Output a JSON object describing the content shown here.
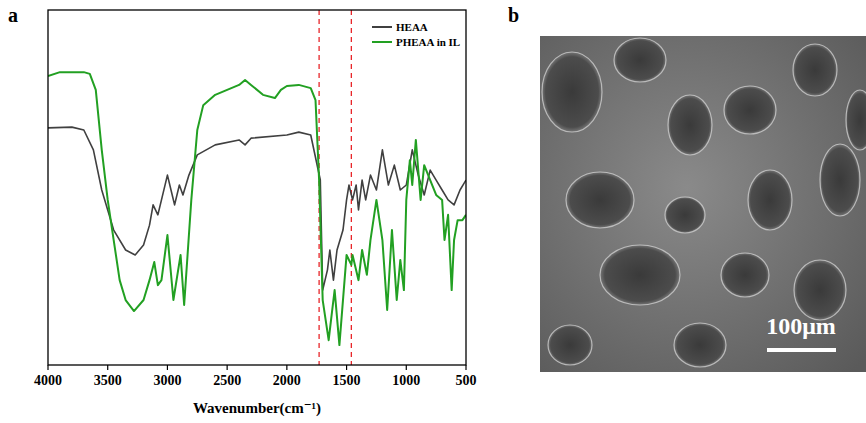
{
  "chart_data": {
    "type": "line",
    "panel_label": "a",
    "x_label": "Wavenumber(cm⁻¹)",
    "xlim": [
      4000,
      500
    ],
    "xticks": [
      4000,
      3500,
      3000,
      2500,
      2000,
      1500,
      1000,
      500
    ],
    "ylim": [
      0,
      100
    ],
    "yticks": [],
    "tick_labels": "x",
    "grid": false,
    "legend": "upper right",
    "reference_lines": {
      "x": [
        1730,
        1460
      ],
      "color": "#e8262a",
      "line_style": "dashed"
    },
    "series": [
      {
        "name": "HEAA",
        "color": "#404040",
        "x": [
          4000,
          3800,
          3700,
          3620,
          3550,
          3450,
          3350,
          3270,
          3200,
          3150,
          3120,
          3080,
          3000,
          2960,
          2940,
          2900,
          2870,
          2820,
          2750,
          2600,
          2400,
          2350,
          2300,
          2000,
          1900,
          1800,
          1720,
          1700,
          1660,
          1640,
          1610,
          1580,
          1530,
          1500,
          1480,
          1450,
          1420,
          1400,
          1370,
          1340,
          1300,
          1250,
          1200,
          1150,
          1100,
          1050,
          1000,
          950,
          900,
          850,
          800,
          750,
          700,
          650,
          600,
          550,
          500
        ],
        "values": [
          66.8,
          67.0,
          66.2,
          60.6,
          49.3,
          38.0,
          32.4,
          31.0,
          33.8,
          39.4,
          45.1,
          42.3,
          53.5,
          47.9,
          45.1,
          50.7,
          47.9,
          53.5,
          59.2,
          62.0,
          63.4,
          62.0,
          63.9,
          64.8,
          65.6,
          64.8,
          52.1,
          21.1,
          26.8,
          32.4,
          23.9,
          32.4,
          38.0,
          46.5,
          50.7,
          46.5,
          50.7,
          43.7,
          52.1,
          46.5,
          53.5,
          49.3,
          60.6,
          50.7,
          56.3,
          49.3,
          50.7,
          60.6,
          53.5,
          47.9,
          54.9,
          52.1,
          49.3,
          46.5,
          45.1,
          49.3,
          52.1
        ]
      },
      {
        "name": "PHEAA in IL",
        "color": "#22a022",
        "x": [
          4000,
          3900,
          3700,
          3650,
          3600,
          3550,
          3500,
          3450,
          3400,
          3350,
          3280,
          3200,
          3150,
          3110,
          3080,
          3050,
          3000,
          2950,
          2890,
          2860,
          2800,
          2750,
          2700,
          2600,
          2500,
          2400,
          2350,
          2300,
          2200,
          2100,
          2050,
          2000,
          1900,
          1800,
          1760,
          1730,
          1700,
          1650,
          1620,
          1600,
          1560,
          1500,
          1460,
          1450,
          1400,
          1370,
          1330,
          1300,
          1250,
          1200,
          1160,
          1120,
          1080,
          1050,
          1020,
          1000,
          970,
          950,
          920,
          880,
          850,
          800,
          750,
          700,
          680,
          650,
          620,
          600,
          570,
          530,
          500
        ],
        "values": [
          81.4,
          82.5,
          82.5,
          82.0,
          77.5,
          60.6,
          46.5,
          35.2,
          23.9,
          18.3,
          15.2,
          18.3,
          23.9,
          29.0,
          22.5,
          23.9,
          36.6,
          18.3,
          31.0,
          16.9,
          46.5,
          66.2,
          73.2,
          76.1,
          77.5,
          78.9,
          80.3,
          78.9,
          76.1,
          75.2,
          77.5,
          78.6,
          78.9,
          78.0,
          74.6,
          52.1,
          18.3,
          7.0,
          15.5,
          21.1,
          5.6,
          31.0,
          28.2,
          31.0,
          23.9,
          32.4,
          25.4,
          35.2,
          46.5,
          35.2,
          15.5,
          38.0,
          18.3,
          29.6,
          21.1,
          46.5,
          57.7,
          50.7,
          63.4,
          46.5,
          56.3,
          52.1,
          47.9,
          46.5,
          35.2,
          42.3,
          21.1,
          35.2,
          40.8,
          40.8,
          42.3
        ]
      }
    ]
  },
  "image": {
    "panel_label": "b",
    "scale_bar": "100μm"
  }
}
